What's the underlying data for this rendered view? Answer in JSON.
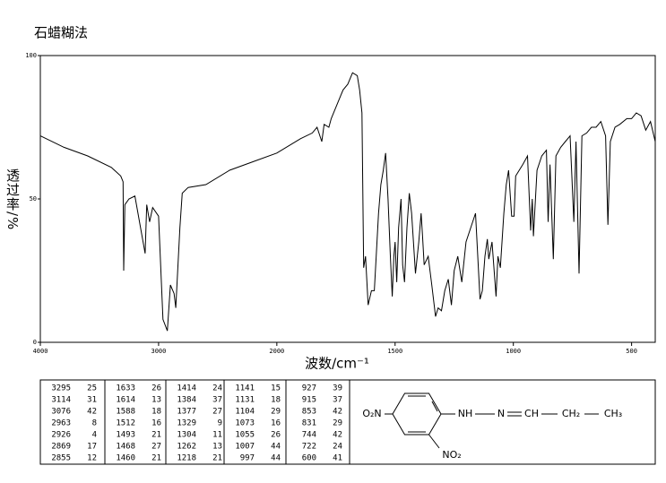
{
  "chart_data": {
    "type": "line",
    "title": "石蜡糊法",
    "x_label": "波数/cm⁻¹",
    "y_label": "透过率/%",
    "xlim": [
      4000,
      400
    ],
    "ylim": [
      0,
      100
    ],
    "xticks": [
      4000,
      3000,
      2000,
      1500,
      1000,
      500
    ],
    "yticks": [
      0,
      50,
      100
    ],
    "x_scale_break": 2000,
    "color": "#000000",
    "x": [
      4000,
      3800,
      3600,
      3400,
      3320,
      3300,
      3295,
      3285,
      3250,
      3200,
      3114,
      3100,
      3076,
      3050,
      3000,
      2963,
      2926,
      2900,
      2869,
      2855,
      2820,
      2800,
      2750,
      2600,
      2400,
      2200,
      2000,
      1900,
      1850,
      1830,
      1810,
      1800,
      1780,
      1770,
      1720,
      1700,
      1680,
      1660,
      1650,
      1640,
      1633,
      1625,
      1614,
      1600,
      1588,
      1580,
      1570,
      1560,
      1550,
      1540,
      1530,
      1520,
      1512,
      1505,
      1500,
      1493,
      1485,
      1475,
      1468,
      1460,
      1450,
      1440,
      1430,
      1414,
      1400,
      1390,
      1384,
      1377,
      1360,
      1345,
      1329,
      1318,
      1304,
      1290,
      1275,
      1262,
      1250,
      1235,
      1218,
      1200,
      1180,
      1160,
      1141,
      1131,
      1120,
      1110,
      1104,
      1090,
      1073,
      1065,
      1055,
      1040,
      1030,
      1020,
      1007,
      997,
      990,
      960,
      940,
      927,
      920,
      915,
      900,
      880,
      860,
      853,
      845,
      831,
      820,
      800,
      780,
      760,
      744,
      735,
      722,
      710,
      690,
      670,
      650,
      630,
      610,
      600,
      590,
      570,
      550,
      520,
      500,
      480,
      460,
      440,
      420,
      400
    ],
    "y": [
      72,
      68,
      65,
      61,
      58,
      56,
      25,
      48,
      50,
      51,
      31,
      48,
      42,
      47,
      44,
      8,
      4,
      20,
      17,
      12,
      40,
      52,
      54,
      55,
      60,
      63,
      66,
      71,
      73,
      75,
      70,
      76,
      75,
      78,
      88,
      90,
      94,
      93,
      88,
      80,
      26,
      30,
      13,
      18,
      18,
      30,
      45,
      55,
      60,
      66,
      50,
      30,
      16,
      30,
      35,
      21,
      40,
      50,
      27,
      21,
      40,
      52,
      45,
      24,
      35,
      45,
      37,
      27,
      30,
      20,
      9,
      12,
      11,
      18,
      22,
      13,
      25,
      30,
      21,
      35,
      40,
      45,
      15,
      18,
      30,
      36,
      29,
      35,
      16,
      30,
      26,
      45,
      55,
      60,
      44,
      44,
      58,
      62,
      65,
      39,
      50,
      37,
      60,
      65,
      67,
      42,
      62,
      29,
      65,
      68,
      70,
      72,
      42,
      70,
      24,
      72,
      73,
      75,
      75,
      77,
      72,
      41,
      70,
      75,
      76,
      78,
      78,
      80,
      79,
      74,
      77,
      70
    ]
  },
  "peak_table": {
    "columns": [
      [
        [
          3295,
          25
        ],
        [
          3114,
          31
        ],
        [
          3076,
          42
        ],
        [
          2963,
          8
        ],
        [
          2926,
          4
        ],
        [
          2869,
          17
        ],
        [
          2855,
          12
        ]
      ],
      [
        [
          1633,
          26
        ],
        [
          1614,
          13
        ],
        [
          1588,
          18
        ],
        [
          1512,
          16
        ],
        [
          1493,
          21
        ],
        [
          1468,
          27
        ],
        [
          1460,
          21
        ]
      ],
      [
        [
          1414,
          24
        ],
        [
          1384,
          37
        ],
        [
          1377,
          27
        ],
        [
          1329,
          9
        ],
        [
          1304,
          11
        ],
        [
          1262,
          13
        ],
        [
          1218,
          21
        ]
      ],
      [
        [
          1141,
          15
        ],
        [
          1131,
          18
        ],
        [
          1104,
          29
        ],
        [
          1073,
          16
        ],
        [
          1055,
          26
        ],
        [
          1007,
          44
        ],
        [
          997,
          44
        ]
      ],
      [
        [
          927,
          39
        ],
        [
          915,
          37
        ],
        [
          853,
          42
        ],
        [
          831,
          29
        ],
        [
          744,
          42
        ],
        [
          722,
          24
        ],
        [
          600,
          41
        ]
      ]
    ]
  },
  "structure": {
    "labels": [
      "O₂N",
      "NH",
      "N",
      "CH",
      "CH₂",
      "CH₃",
      "NO₂"
    ]
  }
}
